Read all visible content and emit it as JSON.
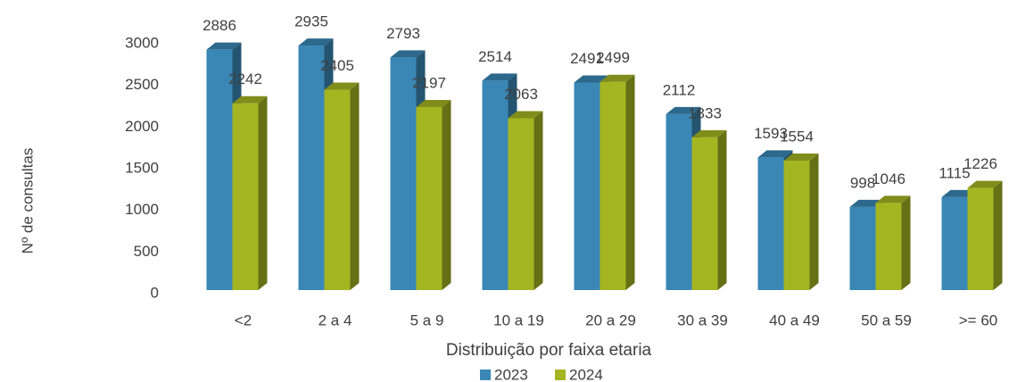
{
  "chart_data": {
    "type": "bar3d",
    "x_label": "Distribuição por faixa etaria",
    "y_label": "Nº de consultas",
    "categories": [
      "<2",
      "2 a 4",
      "5 a 9",
      "10 a 19",
      "20 a 29",
      "30 a 39",
      "40 a 49",
      "50 a 59",
      ">= 60"
    ],
    "series": [
      {
        "name": "2023",
        "color": "#3a87b5",
        "values": [
          2886,
          2935,
          2793,
          2514,
          2491,
          2112,
          1593,
          998,
          1115
        ]
      },
      {
        "name": "2024",
        "color": "#a5b522",
        "values": [
          2242,
          2405,
          2197,
          2063,
          2499,
          1833,
          1554,
          1046,
          1226
        ]
      }
    ],
    "ylim": [
      0,
      3000
    ],
    "yticks": [
      0,
      500,
      1000,
      1500,
      2000,
      2500,
      3000
    ],
    "legend": "bottom"
  }
}
